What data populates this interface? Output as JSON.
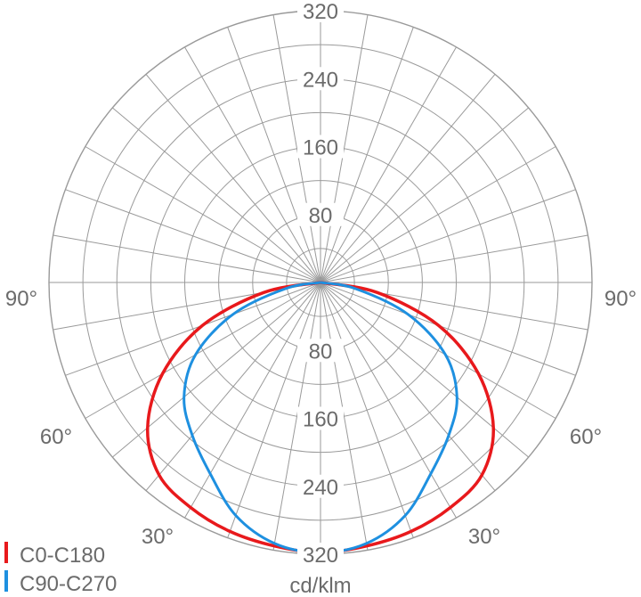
{
  "chart_data": {
    "type": "polar",
    "unit": "cd/klm",
    "radial_ticks": [
      "80",
      "160",
      "240",
      "320"
    ],
    "radial_max": 320,
    "angle_step_deg": 10,
    "ring_step": 40,
    "angle_labels": {
      "left_90": "90°",
      "right_90": "90°",
      "left_60": "60°",
      "right_60": "60°",
      "left_30": "30°",
      "right_30": "30°"
    },
    "grid": true,
    "legend_position": "bottom-left",
    "series": [
      {
        "name": "C0-C180",
        "color": "#e8191c",
        "angles_deg": [
          0,
          10,
          20,
          30,
          40,
          50,
          60,
          70,
          80,
          90
        ],
        "values": [
          318,
          315,
          312,
          306,
          296,
          266,
          215,
          148,
          68,
          0
        ]
      },
      {
        "name": "C90-C270",
        "color": "#1e90e0",
        "angles_deg": [
          0,
          10,
          20,
          30,
          40,
          50,
          60,
          70,
          80,
          90
        ],
        "values": [
          318,
          312,
          292,
          260,
          235,
          210,
          170,
          110,
          42,
          0
        ]
      }
    ]
  }
}
